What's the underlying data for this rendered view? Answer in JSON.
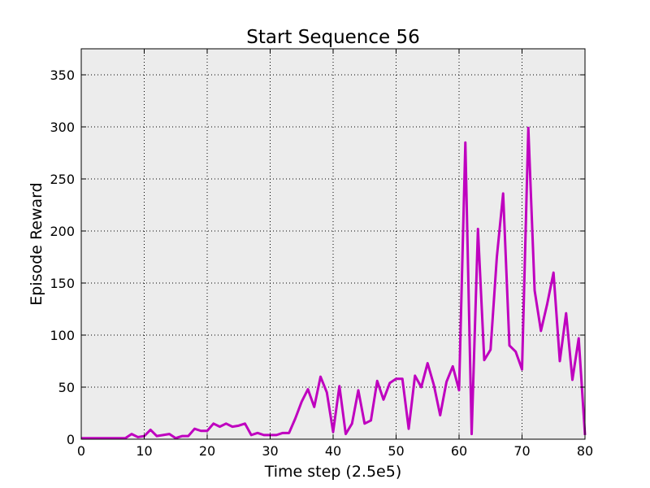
{
  "chart_data": {
    "type": "line",
    "title": "Start Sequence 56",
    "xlabel": "Time step (2.5e5)",
    "ylabel": "Episode Reward",
    "xlim": [
      0,
      80
    ],
    "ylim": [
      0,
      375
    ],
    "xticks": [
      0,
      10,
      20,
      30,
      40,
      50,
      60,
      70,
      80
    ],
    "yticks": [
      0,
      50,
      100,
      150,
      200,
      250,
      300,
      350
    ],
    "grid": true,
    "background": "#ececec",
    "series": [
      {
        "color": "#bf00bf",
        "x": [
          0,
          1,
          2,
          3,
          4,
          5,
          6,
          7,
          8,
          9,
          10,
          11,
          12,
          13,
          14,
          15,
          16,
          17,
          18,
          19,
          20,
          21,
          22,
          23,
          24,
          25,
          26,
          27,
          28,
          29,
          30,
          31,
          32,
          33,
          34,
          35,
          36,
          37,
          38,
          39,
          40,
          41,
          42,
          43,
          44,
          45,
          46,
          47,
          48,
          49,
          50,
          51,
          52,
          53,
          54,
          55,
          56,
          57,
          58,
          59,
          60,
          61,
          62,
          63,
          64,
          65,
          66,
          67,
          68,
          69,
          70,
          71,
          72,
          73,
          74,
          75,
          76,
          77,
          78,
          79,
          80
        ],
        "y": [
          1,
          1,
          1,
          1,
          1,
          1,
          1,
          1,
          5,
          2,
          3,
          9,
          3,
          4,
          5,
          1,
          3,
          3,
          10,
          8,
          8,
          15,
          12,
          15,
          12,
          13,
          15,
          4,
          6,
          4,
          4,
          4,
          6,
          6,
          20,
          36,
          48,
          31,
          60,
          45,
          7,
          51,
          5,
          15,
          47,
          15,
          18,
          56,
          38,
          54,
          58,
          58,
          10,
          61,
          50,
          73,
          52,
          23,
          55,
          70,
          47,
          285,
          5,
          202,
          76,
          86,
          175,
          236,
          90,
          84,
          67,
          299,
          143,
          104,
          130,
          160,
          75,
          121,
          57,
          97,
          4
        ]
      }
    ]
  }
}
